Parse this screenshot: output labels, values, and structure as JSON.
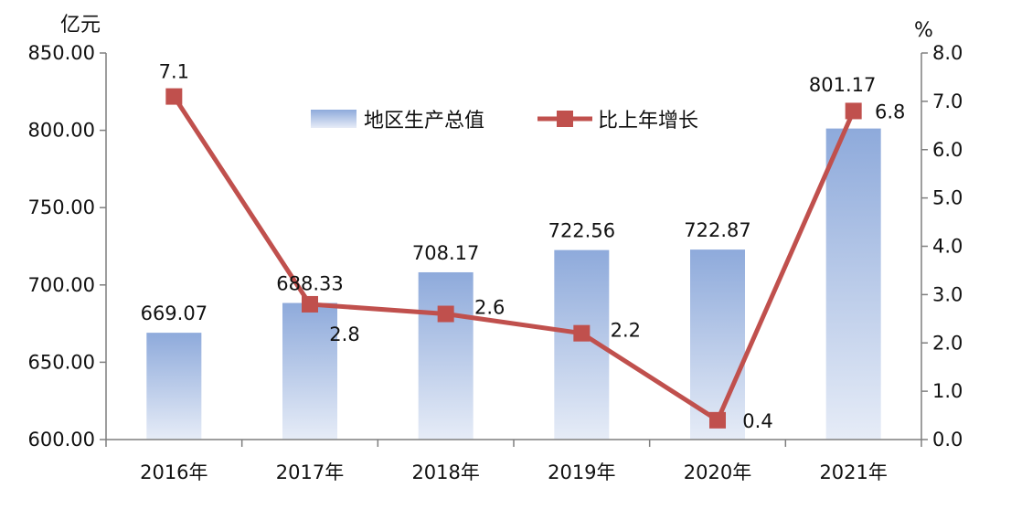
{
  "chart_data": {
    "type": "bar+line",
    "categories": [
      "2016年",
      "2017年",
      "2018年",
      "2019年",
      "2020年",
      "2021年"
    ],
    "series": [
      {
        "name": "地区生产总值",
        "kind": "bar",
        "axis": "left",
        "values": [
          669.07,
          688.33,
          708.17,
          722.56,
          722.87,
          801.17
        ],
        "labels": [
          "669.07",
          "688.33",
          "708.17",
          "722.56",
          "722.87",
          "801.17"
        ],
        "color_top": "#8eaadb",
        "color_bottom": "#e6ecf7"
      },
      {
        "name": "比上年增长",
        "kind": "line",
        "axis": "right",
        "values": [
          7.1,
          2.8,
          2.6,
          2.2,
          0.4,
          6.8
        ],
        "labels": [
          "7.1",
          "2.8",
          "2.6",
          "2.2",
          "0.4",
          "6.8"
        ],
        "color": "#c0504d"
      }
    ],
    "y_left": {
      "unit": "亿元",
      "range": [
        600,
        850
      ],
      "ticks": [
        "600.00",
        "650.00",
        "700.00",
        "750.00",
        "800.00",
        "850.00"
      ]
    },
    "y_right": {
      "unit": "%",
      "range": [
        0,
        8
      ],
      "ticks": [
        "0.0",
        "1.0",
        "2.0",
        "3.0",
        "4.0",
        "5.0",
        "6.0",
        "7.0",
        "8.0"
      ]
    },
    "grid": false,
    "legend_position": "top-center"
  }
}
